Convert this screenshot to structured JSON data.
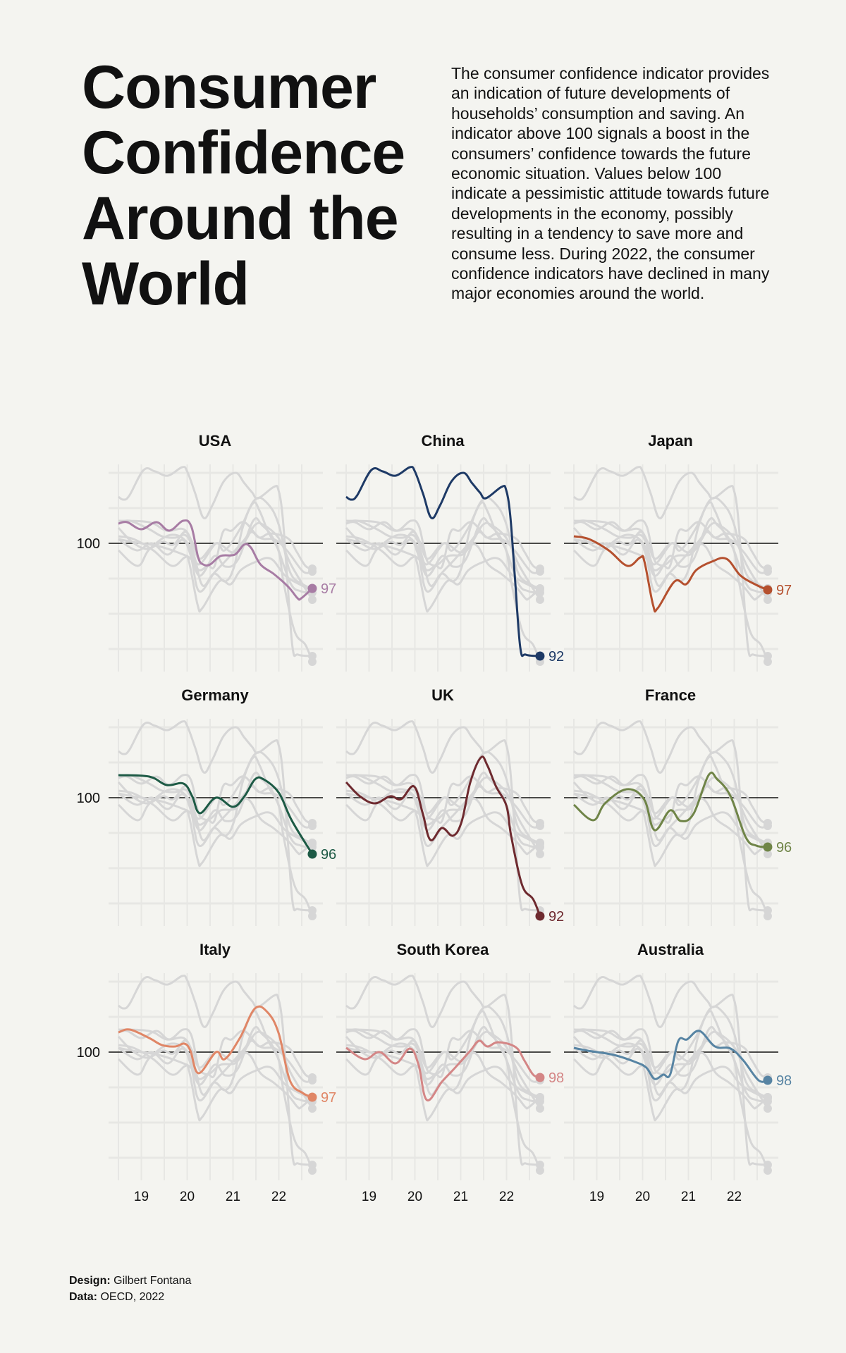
{
  "header": {
    "title": "Consumer Confidence Around the World",
    "description": "The consumer confidence indicator provides an indication of future developments of households’ consumption and saving. An indicator above 100 signals a boost in the consumers’ confidence towards the future economic situation. Values below 100 indicate a pessimistic attitude towards future developments in the economy, possibly resulting in a tendency to save more and consume less. During 2022, the consumer confidence indicators have declined in many major economies around the world."
  },
  "footer": {
    "design_label": "Design:",
    "design_value": "Gilbert Fontana",
    "data_label": "Data:",
    "data_value": "OECD, 2022"
  },
  "chart_data": {
    "type": "line",
    "layout": "small-multiples 3x3",
    "xlim": [
      2018.5,
      2022.9
    ],
    "ylim": [
      91.5,
      106
    ],
    "x_ticks": [
      {
        "value": 2019,
        "label": "19"
      },
      {
        "value": 2020,
        "label": "20"
      },
      {
        "value": 2021,
        "label": "21"
      },
      {
        "value": 2022,
        "label": "22"
      }
    ],
    "y_ticks": [
      {
        "value": 100,
        "label": "100"
      }
    ],
    "reference_line": 100,
    "grid": true,
    "background_series_color": "#d6d6d6",
    "panels": [
      {
        "name": "USA",
        "color": "#a77ca4",
        "end_label": "97",
        "points": [
          [
            2018.5,
            101.4
          ],
          [
            2018.69,
            101.5
          ],
          [
            2019.0,
            101.0
          ],
          [
            2019.33,
            101.5
          ],
          [
            2019.61,
            100.9
          ],
          [
            2019.91,
            101.6
          ],
          [
            2020.09,
            101.2
          ],
          [
            2020.24,
            99.0
          ],
          [
            2020.35,
            98.5
          ],
          [
            2020.5,
            98.5
          ],
          [
            2020.73,
            99.1
          ],
          [
            2021.04,
            99.2
          ],
          [
            2021.24,
            99.9
          ],
          [
            2021.39,
            99.7
          ],
          [
            2021.6,
            98.5
          ],
          [
            2021.9,
            97.8
          ],
          [
            2022.21,
            96.9
          ],
          [
            2022.41,
            96.1
          ],
          [
            2022.49,
            96.1
          ],
          [
            2022.73,
            96.8
          ]
        ]
      },
      {
        "name": "China",
        "color": "#1e3a66",
        "end_label": "92",
        "points": [
          [
            2018.5,
            103.3
          ],
          [
            2018.61,
            103.1
          ],
          [
            2018.74,
            103.4
          ],
          [
            2019.05,
            105.2
          ],
          [
            2019.3,
            105.1
          ],
          [
            2019.58,
            104.8
          ],
          [
            2019.89,
            105.4
          ],
          [
            2020.0,
            105.1
          ],
          [
            2020.18,
            103.5
          ],
          [
            2020.36,
            101.8
          ],
          [
            2020.55,
            102.7
          ],
          [
            2020.8,
            104.4
          ],
          [
            2021.06,
            105.0
          ],
          [
            2021.24,
            104.3
          ],
          [
            2021.42,
            103.6
          ],
          [
            2021.55,
            103.2
          ],
          [
            2021.89,
            104.0
          ],
          [
            2021.99,
            103.8
          ],
          [
            2022.08,
            102.0
          ],
          [
            2022.18,
            97.7
          ],
          [
            2022.3,
            92.6
          ],
          [
            2022.42,
            92.1
          ],
          [
            2022.73,
            92.0
          ]
        ]
      },
      {
        "name": "Japan",
        "color": "#b5502e",
        "end_label": "97",
        "points": [
          [
            2018.5,
            100.5
          ],
          [
            2018.83,
            100.3
          ],
          [
            2019.26,
            99.5
          ],
          [
            2019.67,
            98.4
          ],
          [
            2019.95,
            99.0
          ],
          [
            2020.04,
            98.7
          ],
          [
            2020.23,
            95.6
          ],
          [
            2020.33,
            95.4
          ],
          [
            2020.7,
            97.3
          ],
          [
            2020.95,
            97.1
          ],
          [
            2021.17,
            98.1
          ],
          [
            2021.51,
            98.7
          ],
          [
            2021.83,
            98.9
          ],
          [
            2022.14,
            97.7
          ],
          [
            2022.51,
            97.0
          ],
          [
            2022.73,
            96.7
          ]
        ]
      },
      {
        "name": "Germany",
        "color": "#1d5a45",
        "end_label": "96",
        "points": [
          [
            2018.5,
            101.6
          ],
          [
            2019.17,
            101.5
          ],
          [
            2019.55,
            100.9
          ],
          [
            2019.92,
            101.0
          ],
          [
            2020.11,
            100.1
          ],
          [
            2020.28,
            98.9
          ],
          [
            2020.63,
            100.0
          ],
          [
            2021.0,
            99.35
          ],
          [
            2021.25,
            100.1
          ],
          [
            2021.48,
            101.3
          ],
          [
            2021.67,
            101.3
          ],
          [
            2022.0,
            100.35
          ],
          [
            2022.28,
            98.4
          ],
          [
            2022.73,
            96.0
          ]
        ]
      },
      {
        "name": "UK",
        "color": "#6e2a2f",
        "end_label": "92",
        "points": [
          [
            2018.5,
            101.1
          ],
          [
            2018.8,
            100.1
          ],
          [
            2019.13,
            99.6
          ],
          [
            2019.46,
            100.1
          ],
          [
            2019.7,
            99.9
          ],
          [
            2019.98,
            100.8
          ],
          [
            2020.17,
            98.9
          ],
          [
            2020.34,
            97.0
          ],
          [
            2020.59,
            97.85
          ],
          [
            2020.83,
            97.3
          ],
          [
            2021.02,
            98.3
          ],
          [
            2021.21,
            101.1
          ],
          [
            2021.44,
            102.85
          ],
          [
            2021.58,
            102.3
          ],
          [
            2021.77,
            100.8
          ],
          [
            2022.0,
            99.4
          ],
          [
            2022.1,
            97.3
          ],
          [
            2022.34,
            93.8
          ],
          [
            2022.58,
            92.8
          ],
          [
            2022.73,
            91.6
          ]
        ]
      },
      {
        "name": "France",
        "color": "#6f8447",
        "end_label": "96",
        "points": [
          [
            2018.5,
            99.5
          ],
          [
            2018.92,
            98.4
          ],
          [
            2019.18,
            99.6
          ],
          [
            2019.65,
            100.6
          ],
          [
            2020.03,
            99.9
          ],
          [
            2020.26,
            97.7
          ],
          [
            2020.6,
            99.1
          ],
          [
            2020.83,
            98.35
          ],
          [
            2021.11,
            98.85
          ],
          [
            2021.44,
            101.6
          ],
          [
            2021.63,
            101.3
          ],
          [
            2021.92,
            100.1
          ],
          [
            2022.25,
            97.2
          ],
          [
            2022.48,
            96.6
          ],
          [
            2022.73,
            96.5
          ]
        ]
      },
      {
        "name": "Italy",
        "color": "#e08666",
        "end_label": "97",
        "points": [
          [
            2018.5,
            101.4
          ],
          [
            2018.75,
            101.6
          ],
          [
            2019.17,
            101.0
          ],
          [
            2019.45,
            100.5
          ],
          [
            2019.74,
            100.4
          ],
          [
            2019.94,
            100.6
          ],
          [
            2020.07,
            100.1
          ],
          [
            2020.25,
            98.5
          ],
          [
            2020.63,
            100.0
          ],
          [
            2020.82,
            99.5
          ],
          [
            2021.15,
            101.0
          ],
          [
            2021.48,
            103.1
          ],
          [
            2021.76,
            102.8
          ],
          [
            2022.0,
            101.3
          ],
          [
            2022.24,
            98.0
          ],
          [
            2022.52,
            97.1
          ],
          [
            2022.73,
            96.8
          ]
        ]
      },
      {
        "name": "South Korea",
        "color": "#d48686",
        "end_label": "98",
        "points": [
          [
            2018.5,
            100.3
          ],
          [
            2018.9,
            99.5
          ],
          [
            2019.23,
            100.0
          ],
          [
            2019.58,
            99.2
          ],
          [
            2019.89,
            100.25
          ],
          [
            2020.08,
            99.1
          ],
          [
            2020.26,
            96.6
          ],
          [
            2020.59,
            97.9
          ],
          [
            2020.88,
            98.9
          ],
          [
            2021.21,
            100.1
          ],
          [
            2021.4,
            100.8
          ],
          [
            2021.58,
            100.4
          ],
          [
            2021.82,
            100.7
          ],
          [
            2022.2,
            100.35
          ],
          [
            2022.39,
            99.4
          ],
          [
            2022.58,
            98.4
          ],
          [
            2022.73,
            98.2
          ]
        ]
      },
      {
        "name": "Australia",
        "color": "#5784a3",
        "end_label": "98",
        "points": [
          [
            2018.5,
            100.3
          ],
          [
            2018.8,
            100.1
          ],
          [
            2019.37,
            99.8
          ],
          [
            2019.84,
            99.3
          ],
          [
            2020.08,
            98.9
          ],
          [
            2020.26,
            98.1
          ],
          [
            2020.45,
            98.4
          ],
          [
            2020.6,
            98.4
          ],
          [
            2020.78,
            100.8
          ],
          [
            2020.97,
            100.9
          ],
          [
            2021.24,
            101.5
          ],
          [
            2021.58,
            100.4
          ],
          [
            2021.92,
            100.25
          ],
          [
            2022.2,
            99.4
          ],
          [
            2022.53,
            98.0
          ],
          [
            2022.73,
            98.0
          ]
        ]
      }
    ]
  }
}
